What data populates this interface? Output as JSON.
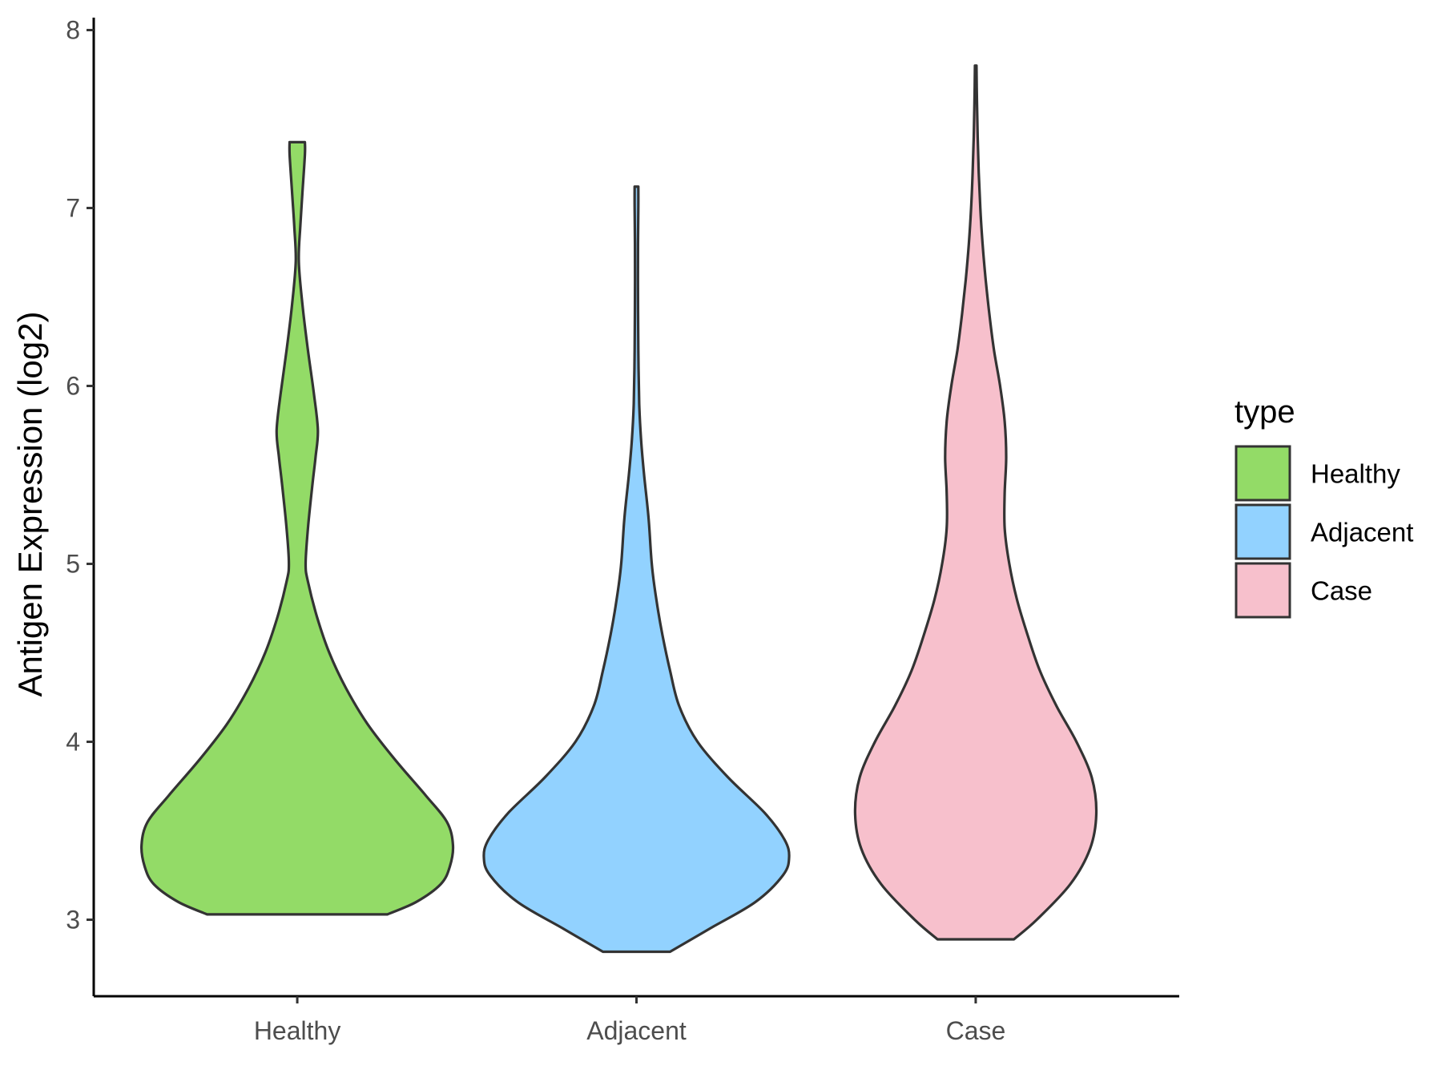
{
  "chart_data": {
    "type": "violin",
    "title": "",
    "xlabel": "",
    "ylabel": "Antigen Expression (log2)",
    "ylim": [
      2.57,
      8.07
    ],
    "y_ticks": [
      3,
      4,
      5,
      6,
      7,
      8
    ],
    "grid": false,
    "legend": {
      "title": "type",
      "placement": "right",
      "entries": [
        "Healthy",
        "Adjacent",
        "Case"
      ]
    },
    "categories": [
      "Healthy",
      "Adjacent",
      "Case"
    ],
    "series": [
      {
        "name": "Healthy",
        "color": "#93DB67",
        "min": 3.03,
        "max": 7.37,
        "profile": [
          [
            3.03,
            0.59
          ],
          [
            3.1,
            0.78
          ],
          [
            3.2,
            0.94
          ],
          [
            3.3,
            1.0
          ],
          [
            3.42,
            1.02
          ],
          [
            3.55,
            0.98
          ],
          [
            3.7,
            0.84
          ],
          [
            3.9,
            0.64
          ],
          [
            4.1,
            0.46
          ],
          [
            4.3,
            0.32
          ],
          [
            4.5,
            0.21
          ],
          [
            4.7,
            0.13
          ],
          [
            4.9,
            0.07
          ],
          [
            5.0,
            0.055
          ],
          [
            5.2,
            0.07
          ],
          [
            5.45,
            0.1
          ],
          [
            5.6,
            0.12
          ],
          [
            5.75,
            0.135
          ],
          [
            5.95,
            0.11
          ],
          [
            6.2,
            0.07
          ],
          [
            6.45,
            0.035
          ],
          [
            6.7,
            0.01
          ],
          [
            6.9,
            0.02
          ],
          [
            7.1,
            0.035
          ],
          [
            7.3,
            0.05
          ],
          [
            7.37,
            0.05
          ]
        ]
      },
      {
        "name": "Adjacent",
        "color": "#92D2FF",
        "min": 2.82,
        "max": 7.12,
        "profile": [
          [
            2.82,
            0.22
          ],
          [
            2.95,
            0.48
          ],
          [
            3.1,
            0.78
          ],
          [
            3.25,
            0.96
          ],
          [
            3.35,
            1.0
          ],
          [
            3.45,
            0.97
          ],
          [
            3.6,
            0.84
          ],
          [
            3.8,
            0.6
          ],
          [
            4.0,
            0.4
          ],
          [
            4.2,
            0.28
          ],
          [
            4.4,
            0.22
          ],
          [
            4.6,
            0.17
          ],
          [
            4.8,
            0.13
          ],
          [
            5.0,
            0.1
          ],
          [
            5.25,
            0.08
          ],
          [
            5.5,
            0.05
          ],
          [
            5.7,
            0.03
          ],
          [
            5.9,
            0.018
          ],
          [
            6.2,
            0.012
          ],
          [
            6.5,
            0.01
          ],
          [
            6.8,
            0.01
          ],
          [
            7.0,
            0.012
          ],
          [
            7.12,
            0.012
          ]
        ]
      },
      {
        "name": "Case",
        "color": "#F7C0CC",
        "min": 2.89,
        "max": 7.8,
        "profile": [
          [
            2.89,
            0.25
          ],
          [
            3.0,
            0.4
          ],
          [
            3.2,
            0.62
          ],
          [
            3.4,
            0.75
          ],
          [
            3.6,
            0.79
          ],
          [
            3.8,
            0.76
          ],
          [
            4.0,
            0.66
          ],
          [
            4.2,
            0.53
          ],
          [
            4.4,
            0.42
          ],
          [
            4.6,
            0.34
          ],
          [
            4.8,
            0.27
          ],
          [
            5.0,
            0.22
          ],
          [
            5.2,
            0.19
          ],
          [
            5.4,
            0.19
          ],
          [
            5.6,
            0.2
          ],
          [
            5.8,
            0.19
          ],
          [
            6.0,
            0.16
          ],
          [
            6.2,
            0.12
          ],
          [
            6.4,
            0.09
          ],
          [
            6.6,
            0.065
          ],
          [
            6.8,
            0.045
          ],
          [
            7.0,
            0.03
          ],
          [
            7.2,
            0.02
          ],
          [
            7.4,
            0.013
          ],
          [
            7.6,
            0.008
          ],
          [
            7.8,
            0.005
          ]
        ]
      }
    ]
  }
}
